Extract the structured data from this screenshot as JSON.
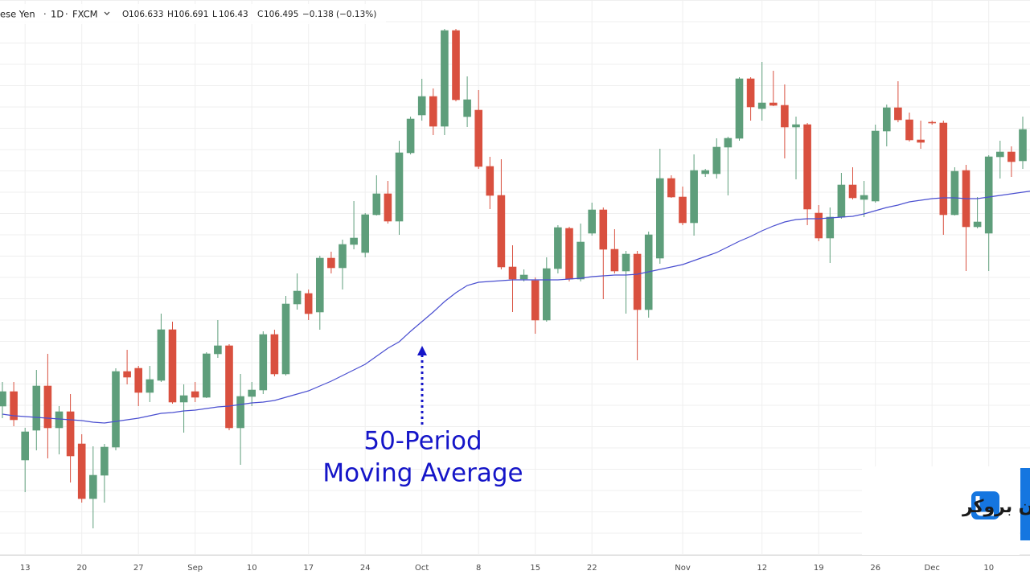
{
  "header": {
    "symbol": "ese Yen",
    "interval": "1D",
    "source": "FXCM",
    "ohlc_letters": [
      "O",
      "H",
      "L",
      "C"
    ],
    "change": "−0.138",
    "change_percent": "(−0.13%)"
  },
  "watermark": "لیان بروکر",
  "chart_data": {
    "type": "candlestick",
    "annotation": [
      "50-Period",
      "Moving Average"
    ],
    "up_color": "#5e9e7b",
    "down_color": "#d9503f",
    "ylim": [
      104.5,
      107.26
    ],
    "grid": true,
    "categories": [
      null,
      null,
      "13",
      null,
      null,
      null,
      null,
      "20",
      null,
      null,
      null,
      null,
      "27",
      null,
      null,
      null,
      null,
      "Sep",
      null,
      null,
      null,
      null,
      "10",
      null,
      null,
      null,
      null,
      "17",
      null,
      null,
      null,
      null,
      "24",
      null,
      null,
      null,
      null,
      "Oct",
      null,
      null,
      null,
      null,
      "8",
      null,
      null,
      null,
      null,
      "15",
      null,
      null,
      null,
      null,
      "22",
      null,
      null,
      null,
      null,
      null,
      null,
      null,
      "Nov",
      null,
      null,
      null,
      null,
      null,
      null,
      "12",
      null,
      null,
      null,
      null,
      "19",
      null,
      null,
      null,
      null,
      "26",
      null,
      null,
      null,
      null,
      "Dec",
      null,
      null,
      null,
      null,
      "10",
      null,
      null,
      null,
      null
    ],
    "open": [
      105.24,
      105.312,
      104.972,
      105.12,
      105.34,
      105.132,
      105.212,
      105.052,
      104.78,
      104.896,
      105.036,
      105.412,
      105.428,
      105.308,
      105.368,
      105.62,
      105.26,
      105.312,
      105.284,
      105.5,
      105.54,
      105.132,
      105.288,
      105.32,
      105.596,
      105.4,
      105.748,
      105.8,
      105.708,
      105.976,
      105.928,
      106.044,
      106.004,
      106.192,
      106.296,
      106.16,
      106.5,
      106.688,
      106.78,
      106.632,
      107.108,
      106.68,
      106.712,
      106.432,
      106.288,
      105.932,
      105.872,
      105.864,
      105.668,
      105.924,
      106.124,
      105.872,
      106.1,
      106.216,
      106.02,
      105.912,
      105.996,
      105.72,
      105.976,
      106.372,
      106.28,
      106.152,
      106.396,
      106.396,
      106.528,
      106.572,
      106.868,
      106.72,
      106.748,
      106.736,
      106.628,
      106.64,
      106.2,
      106.076,
      106.18,
      106.34,
      106.268,
      106.26,
      106.608,
      106.724,
      106.664,
      106.564,
      106.652,
      106.648,
      106.192,
      106.412,
      106.132,
      106.1,
      106.48,
      106.504,
      106.46,
      106.633
    ],
    "high": [
      105.36,
      105.36,
      105.132,
      105.42,
      105.5,
      105.24,
      105.3,
      105.1,
      105.04,
      105.052,
      105.428,
      105.52,
      105.44,
      105.44,
      105.7,
      105.66,
      105.348,
      105.36,
      105.508,
      105.668,
      105.548,
      105.4,
      105.36,
      105.612,
      105.62,
      105.788,
      105.9,
      105.82,
      105.988,
      106.008,
      106.068,
      106.26,
      106.2,
      106.388,
      106.36,
      106.56,
      106.68,
      106.868,
      106.82,
      107.116,
      107.116,
      106.88,
      106.812,
      106.48,
      106.468,
      106.04,
      105.92,
      105.88,
      105.98,
      106.14,
      106.132,
      106.148,
      106.252,
      106.228,
      106.12,
      106.012,
      106.012,
      106.108,
      106.52,
      106.388,
      106.332,
      106.492,
      106.42,
      106.572,
      106.58,
      106.876,
      106.876,
      106.952,
      106.908,
      106.84,
      106.68,
      106.648,
      106.24,
      106.228,
      106.4,
      106.428,
      106.36,
      106.64,
      106.74,
      106.856,
      106.7,
      106.66,
      106.66,
      106.66,
      106.428,
      106.44,
      106.28,
      106.488,
      106.56,
      106.532,
      106.68,
      106.691
    ],
    "low": [
      105.18,
      105.14,
      104.812,
      105.02,
      104.98,
      105.0,
      104.86,
      104.76,
      104.632,
      104.76,
      105.02,
      105.348,
      105.24,
      105.26,
      105.36,
      105.252,
      105.108,
      105.26,
      105.28,
      105.48,
      105.12,
      104.948,
      105.24,
      105.3,
      105.388,
      105.392,
      105.72,
      105.668,
      105.62,
      105.9,
      105.82,
      106.02,
      105.98,
      106.188,
      106.148,
      106.092,
      106.492,
      106.66,
      106.588,
      106.588,
      106.756,
      106.628,
      106.42,
      106.22,
      105.92,
      105.708,
      105.86,
      105.6,
      105.66,
      105.9,
      105.86,
      105.86,
      106.088,
      105.772,
      105.9,
      105.7,
      105.468,
      105.68,
      105.948,
      106.276,
      106.14,
      106.088,
      106.38,
      106.372,
      106.288,
      106.56,
      106.66,
      106.66,
      106.732,
      106.472,
      106.368,
      106.14,
      106.06,
      105.952,
      106.172,
      106.268,
      106.18,
      106.252,
      106.532,
      106.652,
      106.556,
      106.52,
      106.64,
      106.092,
      106.188,
      105.912,
      106.124,
      105.912,
      106.372,
      106.38,
      106.42,
      106.43
    ],
    "close": [
      105.312,
      105.172,
      105.112,
      105.34,
      105.132,
      105.212,
      104.992,
      104.78,
      104.896,
      105.036,
      105.412,
      105.384,
      105.308,
      105.372,
      105.62,
      105.26,
      105.292,
      105.284,
      105.5,
      105.54,
      105.132,
      105.288,
      105.32,
      105.596,
      105.4,
      105.748,
      105.812,
      105.7,
      105.976,
      105.928,
      106.044,
      106.076,
      106.192,
      106.296,
      106.16,
      106.5,
      106.668,
      106.78,
      106.632,
      107.108,
      106.764,
      106.764,
      106.432,
      106.288,
      105.932,
      105.872,
      105.892,
      105.668,
      105.924,
      106.128,
      105.872,
      106.056,
      106.216,
      106.02,
      105.912,
      105.996,
      105.72,
      106.092,
      106.372,
      106.28,
      106.152,
      106.412,
      106.412,
      106.528,
      106.572,
      106.868,
      106.728,
      106.748,
      106.736,
      106.628,
      106.64,
      106.22,
      106.076,
      106.18,
      106.34,
      106.276,
      106.288,
      106.608,
      106.724,
      106.664,
      106.564,
      106.552,
      106.648,
      106.192,
      106.408,
      106.132,
      106.156,
      106.48,
      106.504,
      106.456,
      106.616,
      106.495
    ],
    "ma": {
      "color": "#4a4fd0",
      "values": [
        105.2,
        105.192,
        105.188,
        105.184,
        105.18,
        105.176,
        105.172,
        105.168,
        105.16,
        105.156,
        105.164,
        105.172,
        105.18,
        105.192,
        105.204,
        105.208,
        105.216,
        105.22,
        105.228,
        105.236,
        105.24,
        105.248,
        105.256,
        105.26,
        105.268,
        105.284,
        105.3,
        105.316,
        105.34,
        105.364,
        105.392,
        105.42,
        105.448,
        105.488,
        105.528,
        105.56,
        105.612,
        105.66,
        105.708,
        105.76,
        105.804,
        105.84,
        105.856,
        105.86,
        105.864,
        105.868,
        105.868,
        105.868,
        105.868,
        105.868,
        105.872,
        105.876,
        105.884,
        105.888,
        105.892,
        105.892,
        105.896,
        105.908,
        105.92,
        105.932,
        105.944,
        105.964,
        105.984,
        106.004,
        106.032,
        106.06,
        106.084,
        106.112,
        106.136,
        106.156,
        106.168,
        106.172,
        106.172,
        106.176,
        106.18,
        106.184,
        106.196,
        106.212,
        106.228,
        106.24,
        106.256,
        106.264,
        106.272,
        106.276,
        106.276,
        106.272,
        106.272,
        106.28,
        106.288,
        106.296,
        106.304,
        106.312
      ]
    }
  }
}
